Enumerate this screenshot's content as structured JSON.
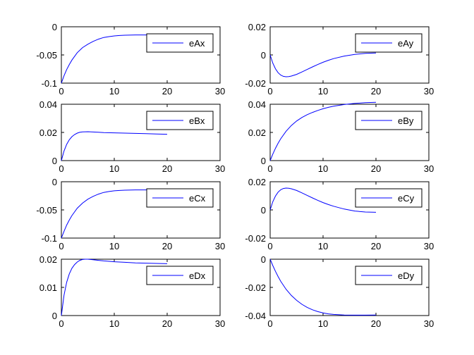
{
  "chart_data": [
    {
      "type": "line",
      "xlim": [
        0,
        30
      ],
      "ylim": [
        -0.1,
        0
      ],
      "xticks": [
        "0",
        "10",
        "20",
        "30"
      ],
      "yticks": [
        "-0.1",
        "-0.05",
        "0"
      ],
      "legend": "top-right",
      "series": [
        {
          "name": "eAx",
          "color": "#0000ff",
          "x": [
            0,
            0.5,
            1,
            1.5,
            2,
            3,
            4,
            5,
            6,
            7,
            8,
            9,
            10,
            11,
            12,
            14,
            16,
            18,
            20
          ],
          "y": [
            -0.1,
            -0.087,
            -0.076,
            -0.067,
            -0.059,
            -0.046,
            -0.037,
            -0.031,
            -0.026,
            -0.022,
            -0.019,
            -0.0175,
            -0.0162,
            -0.0155,
            -0.015,
            -0.0146,
            -0.0145,
            -0.0145,
            -0.0146
          ]
        }
      ]
    },
    {
      "type": "line",
      "xlim": [
        0,
        30
      ],
      "ylim": [
        -0.02,
        0.02
      ],
      "xticks": [
        "0",
        "10",
        "20",
        "30"
      ],
      "yticks": [
        "-0.02",
        "0",
        "0.02"
      ],
      "legend": "top-right",
      "series": [
        {
          "name": "eAy",
          "color": "#0000ff",
          "x": [
            0,
            0.5,
            1,
            1.5,
            2,
            2.5,
            3,
            3.5,
            4,
            5,
            6,
            7,
            8,
            9,
            10,
            11,
            12,
            14,
            16,
            18,
            20
          ],
          "y": [
            0,
            -0.0058,
            -0.0098,
            -0.0126,
            -0.0143,
            -0.0152,
            -0.0155,
            -0.0154,
            -0.015,
            -0.0138,
            -0.0121,
            -0.0103,
            -0.0085,
            -0.0068,
            -0.0052,
            -0.0038,
            -0.0026,
            -0.0008,
            0.0004,
            0.0011,
            0.0014
          ]
        }
      ]
    },
    {
      "type": "line",
      "xlim": [
        0,
        30
      ],
      "ylim": [
        0,
        0.04
      ],
      "xticks": [
        "0",
        "10",
        "20",
        "30"
      ],
      "yticks": [
        "0",
        "0.02",
        "0.04"
      ],
      "legend": "top-right",
      "series": [
        {
          "name": "eBx",
          "color": "#0000ff",
          "x": [
            0,
            0.5,
            1,
            1.5,
            2,
            2.5,
            3,
            3.5,
            4,
            5,
            6,
            7,
            8,
            10,
            12,
            14,
            16,
            18,
            20
          ],
          "y": [
            0,
            0.0068,
            0.0115,
            0.0148,
            0.017,
            0.0185,
            0.0195,
            0.0201,
            0.0204,
            0.0205,
            0.0203,
            0.0201,
            0.0199,
            0.0197,
            0.0195,
            0.0193,
            0.0191,
            0.0189,
            0.0187
          ]
        }
      ]
    },
    {
      "type": "line",
      "xlim": [
        0,
        30
      ],
      "ylim": [
        0,
        0.04
      ],
      "xticks": [
        "0",
        "10",
        "20",
        "30"
      ],
      "yticks": [
        "0",
        "0.02",
        "0.04"
      ],
      "legend": "top-right",
      "series": [
        {
          "name": "eBy",
          "color": "#0000ff",
          "x": [
            0,
            0.5,
            1,
            1.5,
            2,
            3,
            4,
            5,
            6,
            7,
            8,
            9,
            10,
            11,
            12,
            14,
            16,
            18,
            20
          ],
          "y": [
            0,
            0.0046,
            0.0087,
            0.0123,
            0.0155,
            0.0208,
            0.0249,
            0.0281,
            0.0306,
            0.0326,
            0.0342,
            0.0356,
            0.0368,
            0.0378,
            0.0386,
            0.0398,
            0.0406,
            0.0411,
            0.0414
          ]
        }
      ]
    },
    {
      "type": "line",
      "xlim": [
        0,
        30
      ],
      "ylim": [
        -0.1,
        0
      ],
      "xticks": [
        "0",
        "10",
        "20",
        "30"
      ],
      "yticks": [
        "-0.1",
        "-0.05",
        "0"
      ],
      "legend": "top-right",
      "series": [
        {
          "name": "eCx",
          "color": "#0000ff",
          "x": [
            0,
            0.5,
            1,
            1.5,
            2,
            3,
            4,
            5,
            6,
            7,
            8,
            9,
            10,
            11,
            12,
            14,
            16,
            18,
            20
          ],
          "y": [
            -0.1,
            -0.088,
            -0.077,
            -0.068,
            -0.06,
            -0.047,
            -0.038,
            -0.031,
            -0.026,
            -0.022,
            -0.019,
            -0.0173,
            -0.0161,
            -0.0154,
            -0.015,
            -0.0146,
            -0.0145,
            -0.0145,
            -0.0146
          ]
        }
      ]
    },
    {
      "type": "line",
      "xlim": [
        0,
        30
      ],
      "ylim": [
        -0.02,
        0.02
      ],
      "xticks": [
        "0",
        "10",
        "20",
        "30"
      ],
      "yticks": [
        "-0.02",
        "0",
        "0.02"
      ],
      "legend": "top-right",
      "series": [
        {
          "name": "eCy",
          "color": "#0000ff",
          "x": [
            0,
            0.5,
            1,
            1.5,
            2,
            2.5,
            3,
            3.5,
            4,
            5,
            6,
            7,
            8,
            9,
            10,
            11,
            12,
            14,
            16,
            18,
            20
          ],
          "y": [
            0,
            0.0058,
            0.0098,
            0.0126,
            0.0143,
            0.0152,
            0.0155,
            0.0154,
            0.015,
            0.0138,
            0.0121,
            0.0103,
            0.0085,
            0.0068,
            0.0052,
            0.0038,
            0.0026,
            0.0006,
            -0.0008,
            -0.0015,
            -0.0017
          ]
        }
      ]
    },
    {
      "type": "line",
      "xlim": [
        0,
        30
      ],
      "ylim": [
        0,
        0.02
      ],
      "xticks": [
        "0",
        "10",
        "20",
        "30"
      ],
      "yticks": [
        "0",
        "0.01",
        "0.02"
      ],
      "legend": "top-right",
      "series": [
        {
          "name": "eDx",
          "color": "#0000ff",
          "x": [
            0,
            0.5,
            1,
            1.5,
            2,
            2.5,
            3,
            3.5,
            4,
            4.5,
            5,
            6,
            7,
            8,
            10,
            12,
            14,
            16,
            18,
            20
          ],
          "y": [
            0,
            0.0072,
            0.0118,
            0.0148,
            0.0168,
            0.0181,
            0.019,
            0.0196,
            0.0199,
            0.02,
            0.02,
            0.0198,
            0.0196,
            0.0194,
            0.0191,
            0.0189,
            0.0187,
            0.0186,
            0.0185,
            0.0184
          ]
        }
      ]
    },
    {
      "type": "line",
      "xlim": [
        0,
        30
      ],
      "ylim": [
        -0.04,
        0
      ],
      "xticks": [
        "0",
        "10",
        "20",
        "30"
      ],
      "yticks": [
        "-0.04",
        "-0.02",
        "0"
      ],
      "legend": "top-right",
      "series": [
        {
          "name": "eDy",
          "color": "#0000ff",
          "x": [
            0,
            0.5,
            1,
            1.5,
            2,
            3,
            4,
            5,
            6,
            7,
            8,
            9,
            10,
            11,
            12,
            14,
            16,
            18,
            20
          ],
          "y": [
            0,
            -0.0045,
            -0.0086,
            -0.0123,
            -0.0157,
            -0.0213,
            -0.0257,
            -0.0292,
            -0.032,
            -0.0342,
            -0.0359,
            -0.0372,
            -0.0381,
            -0.0388,
            -0.0392,
            -0.0396,
            -0.0397,
            -0.0397,
            -0.0396
          ]
        }
      ]
    }
  ]
}
